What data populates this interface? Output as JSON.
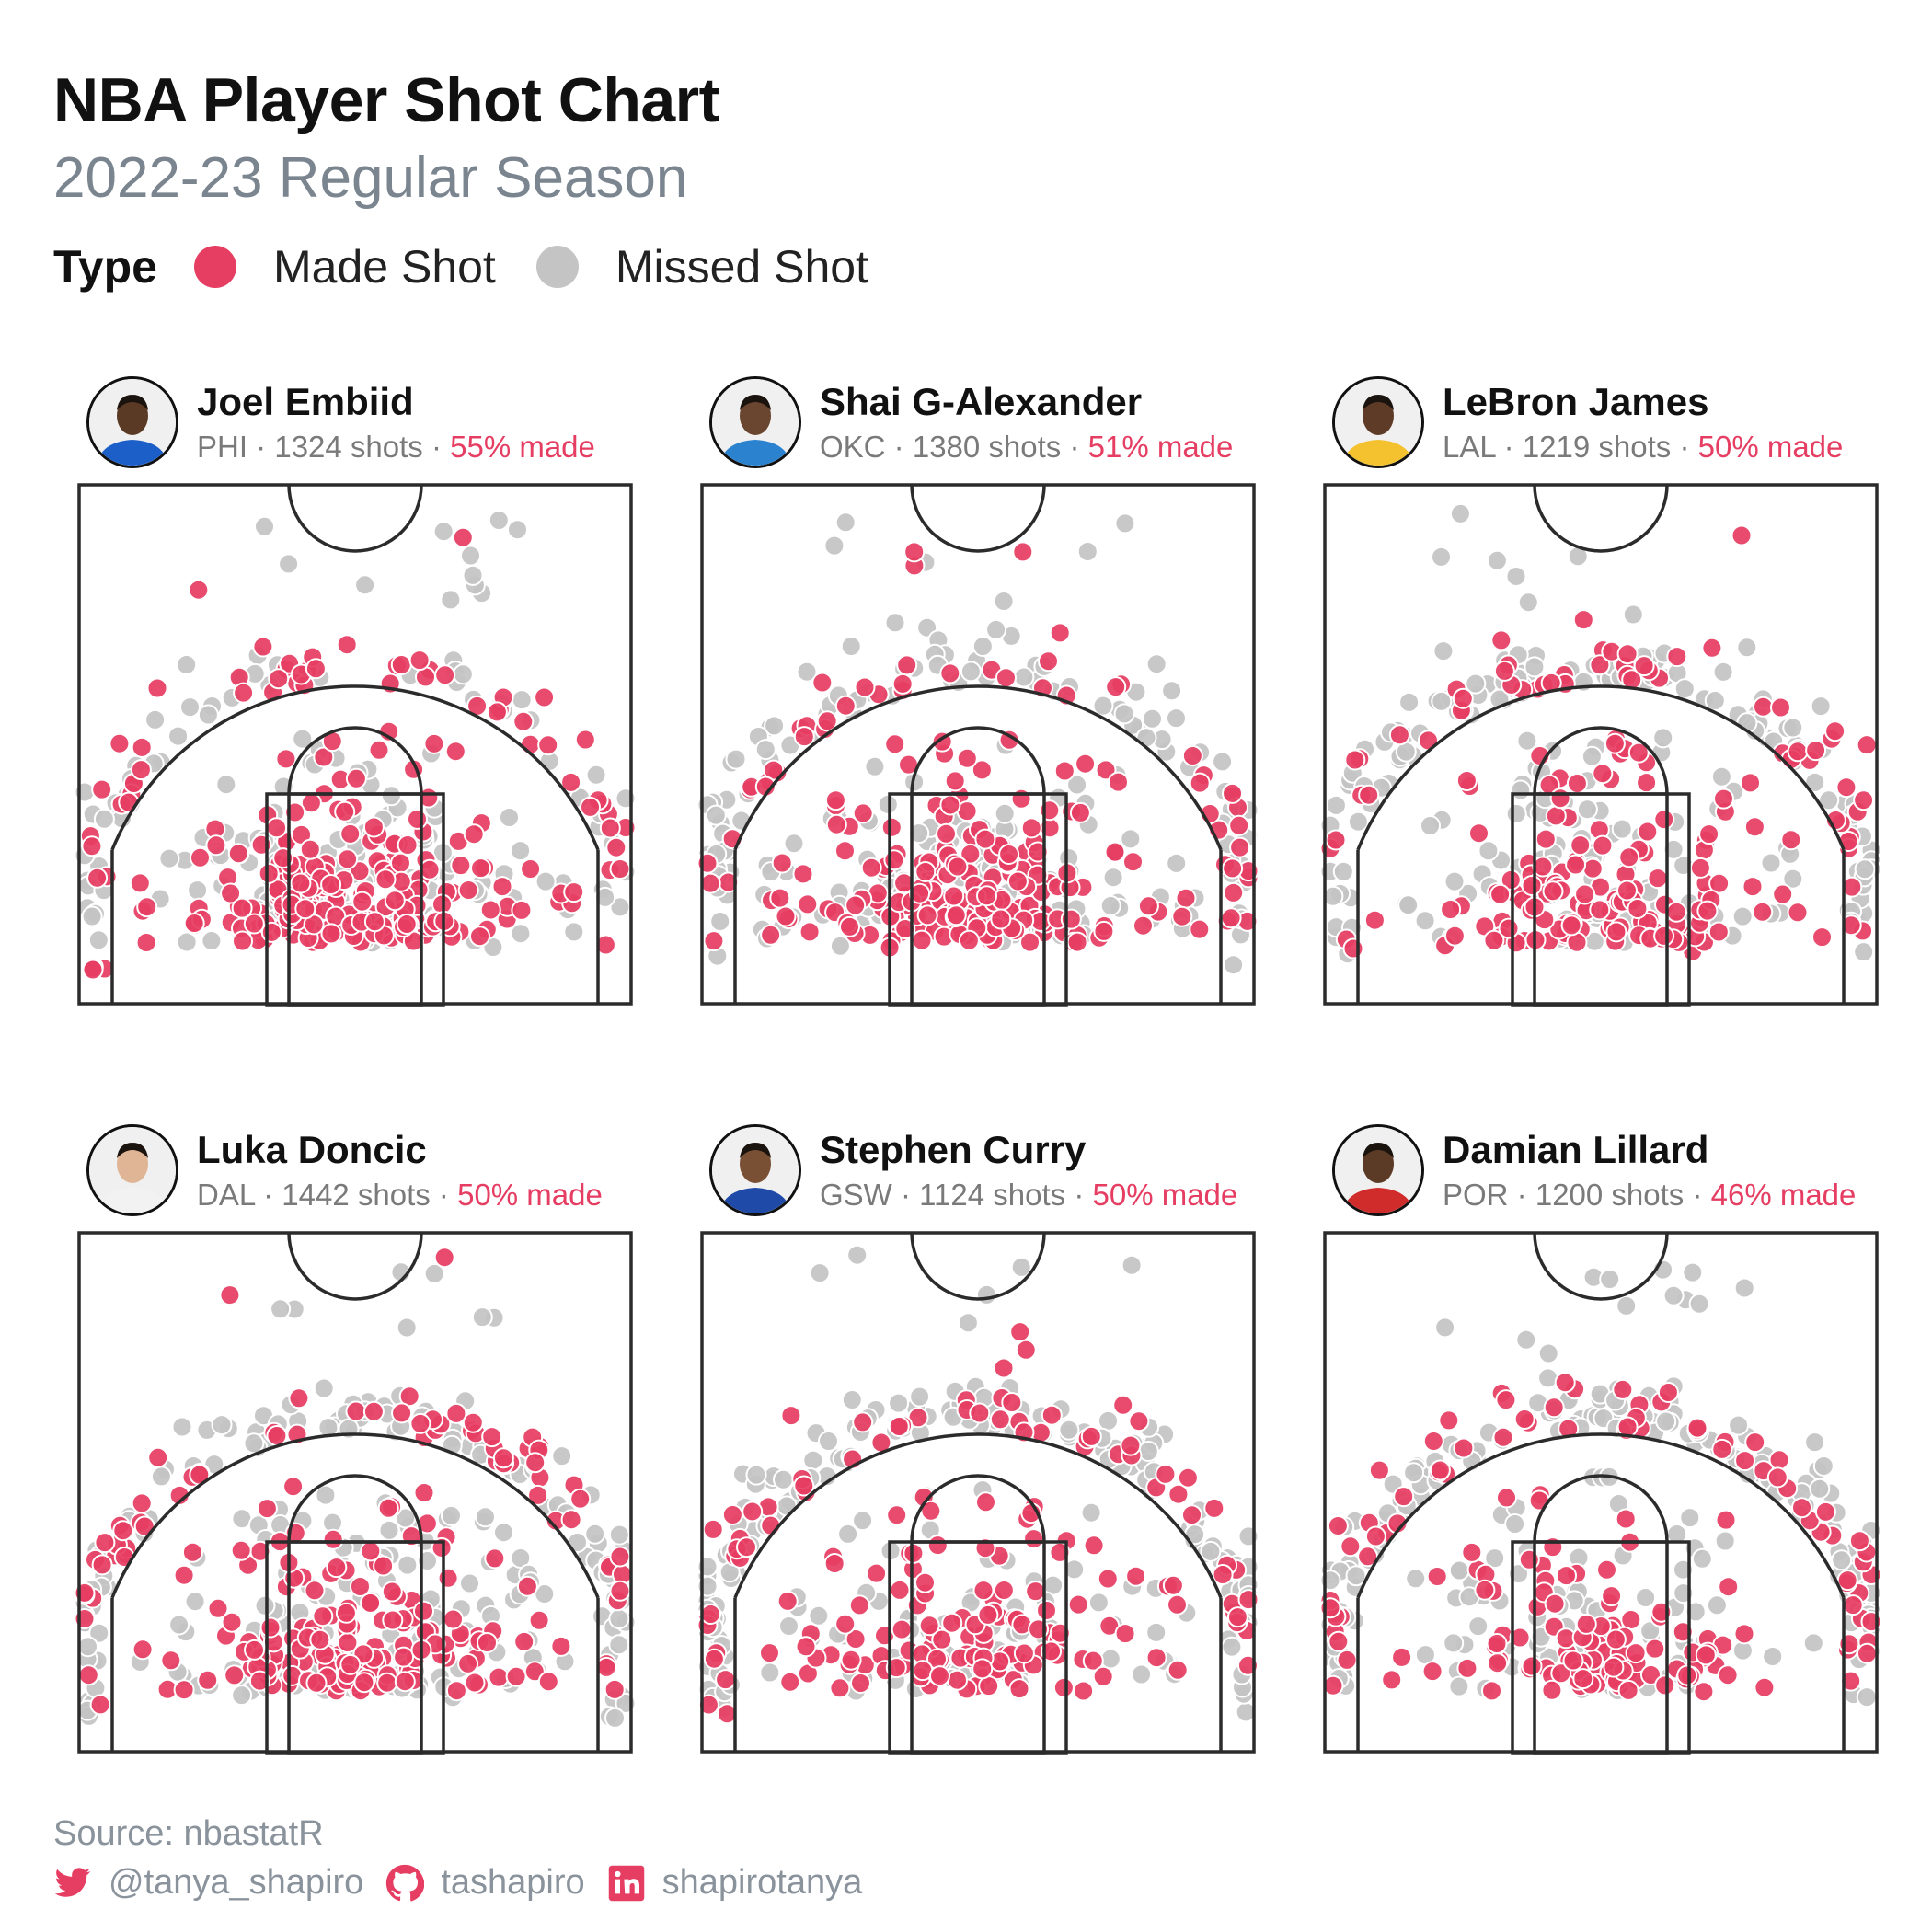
{
  "title": "NBA Player Shot Chart",
  "subtitle": "2022-23 Regular Season",
  "legend": {
    "title": "Type",
    "made_label": "Made Shot",
    "missed_label": "Missed Shot",
    "made_color": "#e63d62",
    "missed_color": "#c4c4c4"
  },
  "chart_data": {
    "type": "scatter",
    "x_range_ft": [
      -25,
      25
    ],
    "y_range_ft": [
      -5,
      42
    ],
    "legend_placement": "top-left",
    "grid": false,
    "panels": [
      {
        "player": "Joel Embiid",
        "meta": "PHI · 1324 shots ·",
        "pct": "55% made",
        "team": "PHI",
        "shots": 1324,
        "made_rate": 0.55,
        "face": "#5a3a24",
        "jersey": "#1d5fc8",
        "seed": 11,
        "style": "paint_mid",
        "n": 460
      },
      {
        "player": "Shai G-Alexander",
        "meta": "OKC · 1380 shots ·",
        "pct": "51% made",
        "team": "OKC",
        "shots": 1380,
        "made_rate": 0.51,
        "face": "#6a4530",
        "jersey": "#2b83d0",
        "seed": 23,
        "style": "paint_mid",
        "n": 470
      },
      {
        "player": "LeBron James",
        "meta": "LAL · 1219 shots ·",
        "pct": "50% made",
        "team": "LAL",
        "shots": 1219,
        "made_rate": 0.5,
        "face": "#5e3b26",
        "jersey": "#f3c22e",
        "seed": 37,
        "style": "balanced",
        "n": 430
      },
      {
        "player": "Luka Doncic",
        "meta": "DAL · 1442 shots ·",
        "pct": "50% made",
        "team": "DAL",
        "shots": 1442,
        "made_rate": 0.5,
        "face": "#e0b595",
        "jersey": "#f2f2f2",
        "seed": 41,
        "style": "balanced",
        "n": 480
      },
      {
        "player": "Stephen Curry",
        "meta": "GSW · 1124 shots ·",
        "pct": "50% made",
        "team": "GSW",
        "shots": 1124,
        "made_rate": 0.5,
        "face": "#7a5035",
        "jersey": "#1f4aa8",
        "seed": 53,
        "style": "three",
        "n": 420
      },
      {
        "player": "Damian Lillard",
        "meta": "POR · 1200 shots ·",
        "pct": "46% made",
        "team": "POR",
        "shots": 1200,
        "made_rate": 0.46,
        "face": "#5b3a26",
        "jersey": "#d12c2c",
        "seed": 67,
        "style": "three",
        "n": 430
      }
    ]
  },
  "footer": {
    "source": "Source: nbastatR",
    "twitter": "@tanya_shapiro",
    "github": "tashapiro",
    "linkedin": "shapirotanya"
  }
}
